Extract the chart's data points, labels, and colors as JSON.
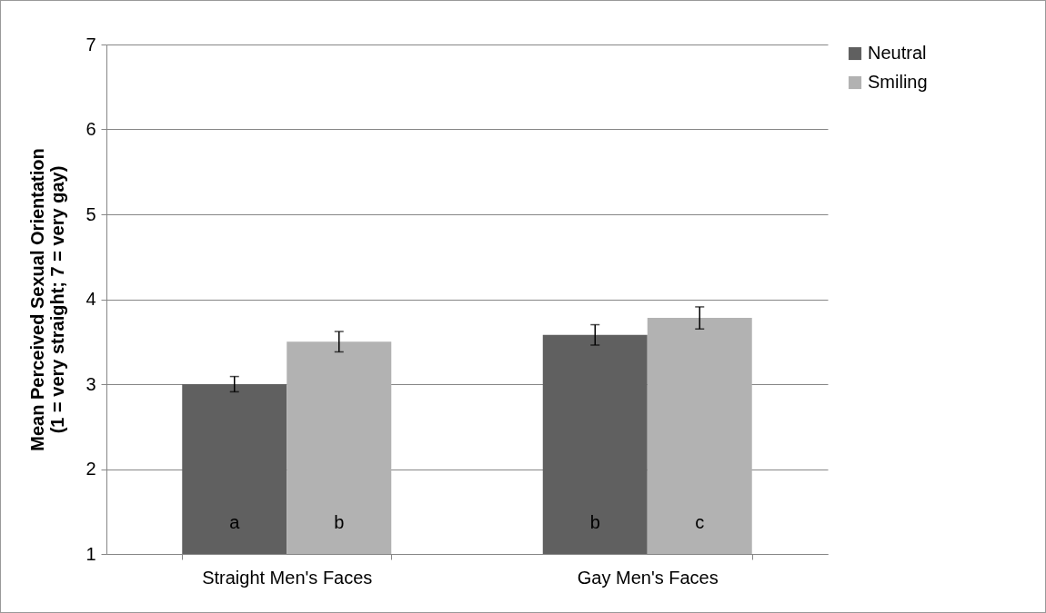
{
  "chart_data": {
    "type": "bar",
    "ylabel": "Mean Perceived Sexual Orientation\n(1 = very straight; 7 = very gay)",
    "categories": [
      "Straight Men's Faces",
      "Gay Men's Faces"
    ],
    "series": [
      {
        "name": "Neutral",
        "color": "#606060",
        "values": [
          3.0,
          3.58
        ],
        "errors": [
          0.09,
          0.12
        ],
        "value_labels": [
          "a",
          "b"
        ]
      },
      {
        "name": "Smiling",
        "color": "#b2b2b2",
        "values": [
          3.5,
          3.78
        ],
        "errors": [
          0.12,
          0.13
        ],
        "value_labels": [
          "b",
          "c"
        ]
      }
    ],
    "ylim": [
      1,
      7
    ],
    "yticks": [
      1,
      2,
      3,
      4,
      5,
      6,
      7
    ],
    "grid": "y",
    "legend": "right"
  }
}
